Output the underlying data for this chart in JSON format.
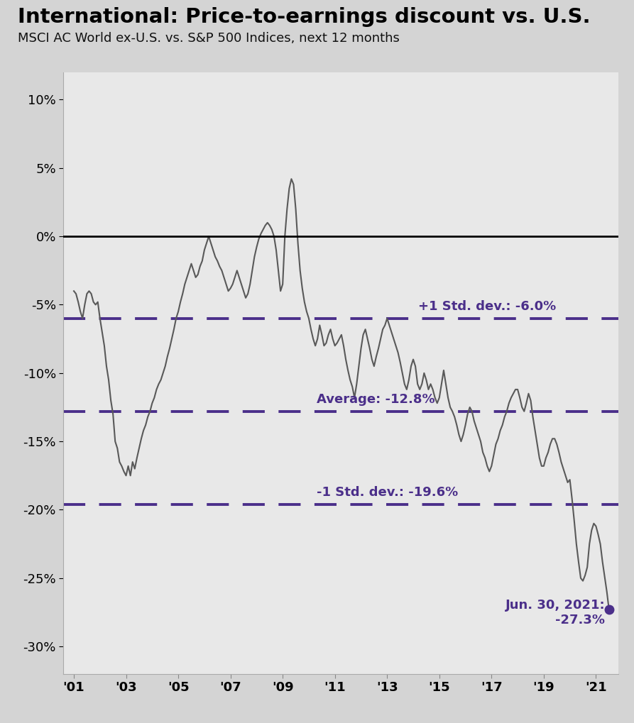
{
  "title": "International: Price-to-earnings discount vs. U.S.",
  "subtitle": "MSCI AC World ex-U.S. vs. S&P 500 Indices, next 12 months",
  "bg_outer": "#d4d4d4",
  "bg_plot": "#e8e8e8",
  "line_color": "#595959",
  "dashed_color": "#4b2f8a",
  "dot_color": "#4b2f8a",
  "avg": -0.128,
  "std_plus1": -0.06,
  "std_minus1": -0.196,
  "label_avg": "Average: -12.8%",
  "label_std_plus": "+1 Std. dev.: -6.0%",
  "label_std_minus": "-1 Std. dev.: -19.6%",
  "label_dot_line1": "Jun. 30, 2021:",
  "label_dot_line2": "-27.3%",
  "dot_value": -0.273,
  "ylim": [
    -0.32,
    0.12
  ],
  "yticks": [
    0.1,
    0.05,
    0.0,
    -0.05,
    -0.1,
    -0.15,
    -0.2,
    -0.25,
    -0.3
  ],
  "xtick_labels": [
    "'01",
    "'03",
    "'05",
    "'07",
    "'09",
    "'11",
    "'13",
    "'15",
    "'17",
    "'19",
    "'21"
  ],
  "xtick_positions": [
    2001,
    2003,
    2005,
    2007,
    2009,
    2011,
    2013,
    2015,
    2017,
    2019,
    2021
  ],
  "title_fontsize": 21,
  "subtitle_fontsize": 13,
  "tick_fontsize": 13,
  "annotation_fontsize": 13,
  "dates": [
    2001.0,
    2001.083,
    2001.167,
    2001.25,
    2001.333,
    2001.417,
    2001.5,
    2001.583,
    2001.667,
    2001.75,
    2001.833,
    2001.917,
    2002.0,
    2002.083,
    2002.167,
    2002.25,
    2002.333,
    2002.417,
    2002.5,
    2002.583,
    2002.667,
    2002.75,
    2002.833,
    2002.917,
    2003.0,
    2003.083,
    2003.167,
    2003.25,
    2003.333,
    2003.417,
    2003.5,
    2003.583,
    2003.667,
    2003.75,
    2003.833,
    2003.917,
    2004.0,
    2004.083,
    2004.167,
    2004.25,
    2004.333,
    2004.417,
    2004.5,
    2004.583,
    2004.667,
    2004.75,
    2004.833,
    2004.917,
    2005.0,
    2005.083,
    2005.167,
    2005.25,
    2005.333,
    2005.417,
    2005.5,
    2005.583,
    2005.667,
    2005.75,
    2005.833,
    2005.917,
    2006.0,
    2006.083,
    2006.167,
    2006.25,
    2006.333,
    2006.417,
    2006.5,
    2006.583,
    2006.667,
    2006.75,
    2006.833,
    2006.917,
    2007.0,
    2007.083,
    2007.167,
    2007.25,
    2007.333,
    2007.417,
    2007.5,
    2007.583,
    2007.667,
    2007.75,
    2007.833,
    2007.917,
    2008.0,
    2008.083,
    2008.167,
    2008.25,
    2008.333,
    2008.417,
    2008.5,
    2008.583,
    2008.667,
    2008.75,
    2008.833,
    2008.917,
    2009.0,
    2009.083,
    2009.167,
    2009.25,
    2009.333,
    2009.417,
    2009.5,
    2009.583,
    2009.667,
    2009.75,
    2009.833,
    2009.917,
    2010.0,
    2010.083,
    2010.167,
    2010.25,
    2010.333,
    2010.417,
    2010.5,
    2010.583,
    2010.667,
    2010.75,
    2010.833,
    2010.917,
    2011.0,
    2011.083,
    2011.167,
    2011.25,
    2011.333,
    2011.417,
    2011.5,
    2011.583,
    2011.667,
    2011.75,
    2011.833,
    2011.917,
    2012.0,
    2012.083,
    2012.167,
    2012.25,
    2012.333,
    2012.417,
    2012.5,
    2012.583,
    2012.667,
    2012.75,
    2012.833,
    2012.917,
    2013.0,
    2013.083,
    2013.167,
    2013.25,
    2013.333,
    2013.417,
    2013.5,
    2013.583,
    2013.667,
    2013.75,
    2013.833,
    2013.917,
    2014.0,
    2014.083,
    2014.167,
    2014.25,
    2014.333,
    2014.417,
    2014.5,
    2014.583,
    2014.667,
    2014.75,
    2014.833,
    2014.917,
    2015.0,
    2015.083,
    2015.167,
    2015.25,
    2015.333,
    2015.417,
    2015.5,
    2015.583,
    2015.667,
    2015.75,
    2015.833,
    2015.917,
    2016.0,
    2016.083,
    2016.167,
    2016.25,
    2016.333,
    2016.417,
    2016.5,
    2016.583,
    2016.667,
    2016.75,
    2016.833,
    2016.917,
    2017.0,
    2017.083,
    2017.167,
    2017.25,
    2017.333,
    2017.417,
    2017.5,
    2017.583,
    2017.667,
    2017.75,
    2017.833,
    2017.917,
    2018.0,
    2018.083,
    2018.167,
    2018.25,
    2018.333,
    2018.417,
    2018.5,
    2018.583,
    2018.667,
    2018.75,
    2018.833,
    2018.917,
    2019.0,
    2019.083,
    2019.167,
    2019.25,
    2019.333,
    2019.417,
    2019.5,
    2019.583,
    2019.667,
    2019.75,
    2019.833,
    2019.917,
    2020.0,
    2020.083,
    2020.167,
    2020.25,
    2020.333,
    2020.417,
    2020.5,
    2020.583,
    2020.667,
    2020.75,
    2020.833,
    2020.917,
    2021.0,
    2021.083,
    2021.167,
    2021.25,
    2021.417,
    2021.5
  ],
  "values": [
    -0.04,
    -0.042,
    -0.048,
    -0.055,
    -0.06,
    -0.05,
    -0.042,
    -0.04,
    -0.042,
    -0.048,
    -0.05,
    -0.048,
    -0.06,
    -0.07,
    -0.08,
    -0.095,
    -0.105,
    -0.12,
    -0.13,
    -0.15,
    -0.155,
    -0.165,
    -0.168,
    -0.172,
    -0.175,
    -0.168,
    -0.175,
    -0.165,
    -0.17,
    -0.162,
    -0.155,
    -0.148,
    -0.142,
    -0.138,
    -0.132,
    -0.128,
    -0.122,
    -0.118,
    -0.112,
    -0.108,
    -0.105,
    -0.1,
    -0.095,
    -0.088,
    -0.082,
    -0.075,
    -0.068,
    -0.06,
    -0.055,
    -0.048,
    -0.042,
    -0.035,
    -0.03,
    -0.025,
    -0.02,
    -0.025,
    -0.03,
    -0.028,
    -0.022,
    -0.018,
    -0.01,
    -0.005,
    0.0,
    -0.005,
    -0.01,
    -0.015,
    -0.018,
    -0.022,
    -0.025,
    -0.03,
    -0.035,
    -0.04,
    -0.038,
    -0.035,
    -0.03,
    -0.025,
    -0.03,
    -0.035,
    -0.04,
    -0.045,
    -0.042,
    -0.035,
    -0.025,
    -0.015,
    -0.008,
    -0.002,
    0.002,
    0.005,
    0.008,
    0.01,
    0.008,
    0.005,
    0.0,
    -0.01,
    -0.025,
    -0.04,
    -0.035,
    0.0,
    0.02,
    0.035,
    0.042,
    0.038,
    0.02,
    -0.005,
    -0.025,
    -0.038,
    -0.048,
    -0.055,
    -0.06,
    -0.068,
    -0.075,
    -0.08,
    -0.075,
    -0.065,
    -0.072,
    -0.08,
    -0.078,
    -0.072,
    -0.068,
    -0.075,
    -0.08,
    -0.078,
    -0.075,
    -0.072,
    -0.08,
    -0.09,
    -0.098,
    -0.105,
    -0.11,
    -0.118,
    -0.108,
    -0.095,
    -0.082,
    -0.072,
    -0.068,
    -0.075,
    -0.082,
    -0.09,
    -0.095,
    -0.088,
    -0.082,
    -0.075,
    -0.068,
    -0.065,
    -0.06,
    -0.065,
    -0.07,
    -0.075,
    -0.08,
    -0.085,
    -0.092,
    -0.1,
    -0.108,
    -0.112,
    -0.105,
    -0.095,
    -0.09,
    -0.095,
    -0.108,
    -0.112,
    -0.108,
    -0.1,
    -0.105,
    -0.112,
    -0.108,
    -0.112,
    -0.118,
    -0.122,
    -0.118,
    -0.108,
    -0.098,
    -0.108,
    -0.118,
    -0.125,
    -0.128,
    -0.132,
    -0.138,
    -0.145,
    -0.15,
    -0.145,
    -0.138,
    -0.13,
    -0.125,
    -0.128,
    -0.135,
    -0.14,
    -0.145,
    -0.15,
    -0.158,
    -0.162,
    -0.168,
    -0.172,
    -0.168,
    -0.16,
    -0.152,
    -0.148,
    -0.142,
    -0.138,
    -0.132,
    -0.128,
    -0.122,
    -0.118,
    -0.115,
    -0.112,
    -0.112,
    -0.118,
    -0.125,
    -0.128,
    -0.122,
    -0.115,
    -0.12,
    -0.132,
    -0.142,
    -0.152,
    -0.162,
    -0.168,
    -0.168,
    -0.162,
    -0.158,
    -0.152,
    -0.148,
    -0.148,
    -0.152,
    -0.158,
    -0.165,
    -0.17,
    -0.175,
    -0.18,
    -0.178,
    -0.192,
    -0.208,
    -0.225,
    -0.238,
    -0.25,
    -0.252,
    -0.248,
    -0.242,
    -0.225,
    -0.215,
    -0.21,
    -0.212,
    -0.218,
    -0.225,
    -0.238,
    -0.26,
    -0.273
  ]
}
